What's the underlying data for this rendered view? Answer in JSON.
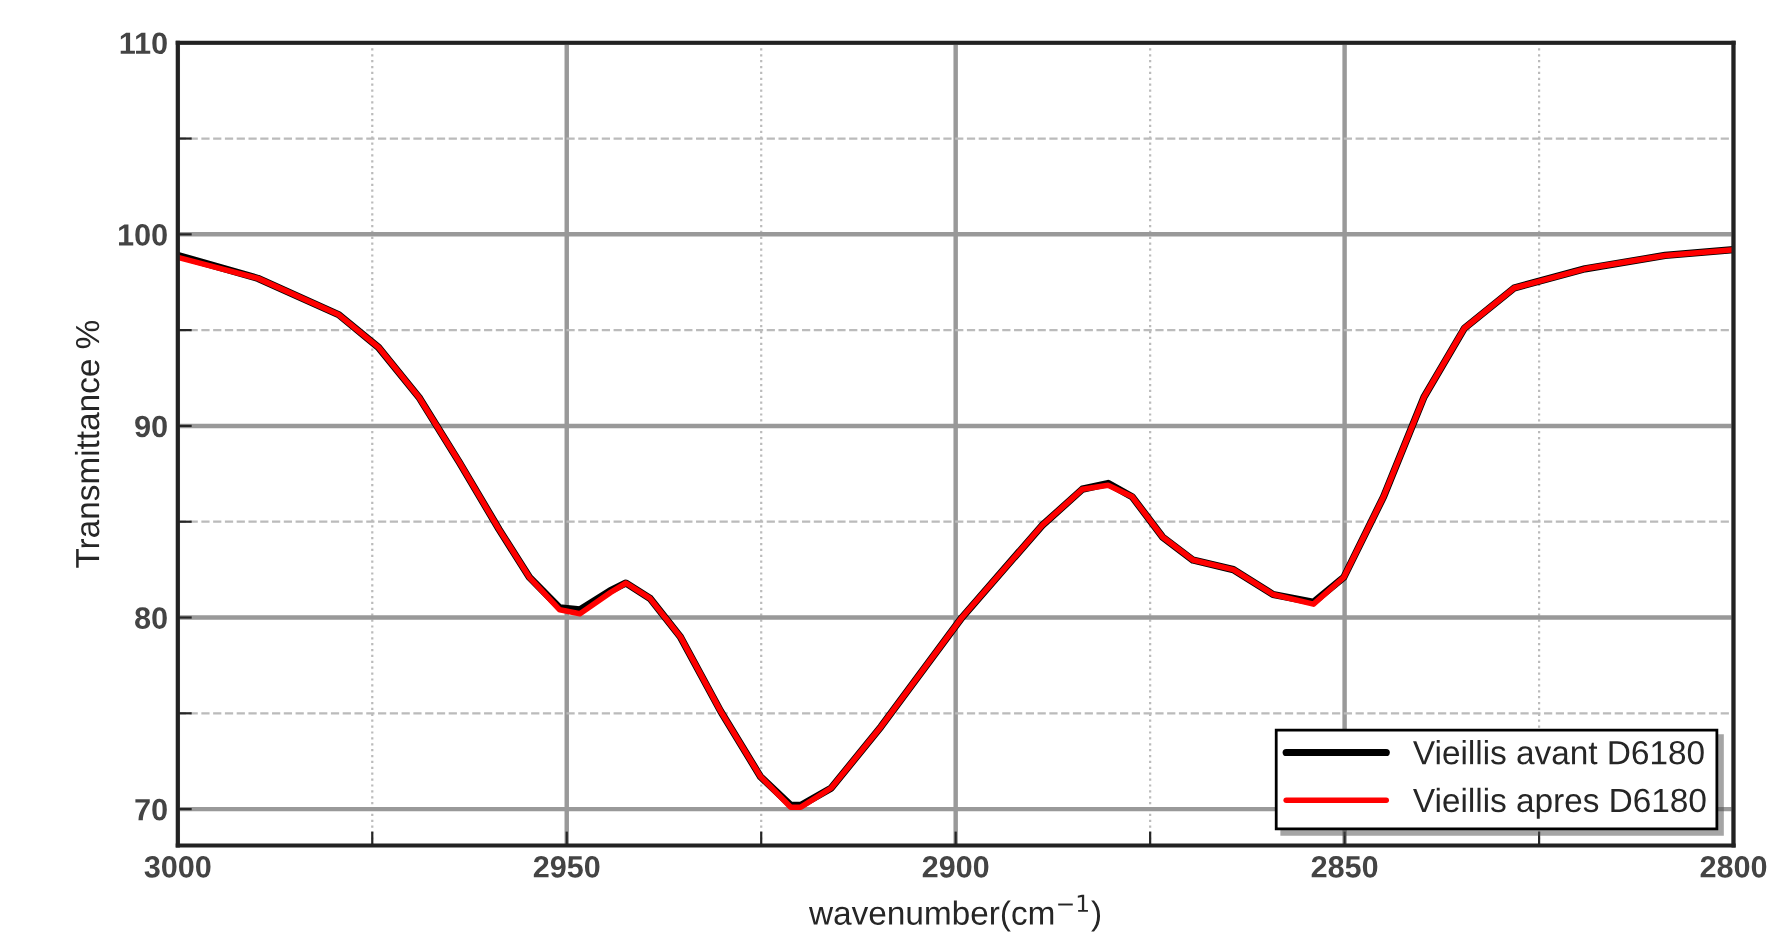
{
  "chart_data": {
    "type": "line",
    "xlabel": "wavenumber(cm$^{−1}$)",
    "ylabel": "Transmittance %",
    "xlim": [
      3000,
      2800
    ],
    "ylim": [
      68.1,
      110
    ],
    "xticks": [
      3000,
      {
        "value": 2975,
        "label": null
      },
      2950,
      {
        "value": 2925,
        "label": null
      },
      2900,
      {
        "value": 2875,
        "label": null
      },
      2850,
      {
        "value": 2825,
        "label": null
      },
      2800
    ],
    "yticks": [
      70,
      {
        "value": 75,
        "label": null
      },
      80,
      {
        "value": 85,
        "label": null
      },
      90,
      {
        "value": 95,
        "label": null
      },
      100,
      {
        "value": 105,
        "label": null
      },
      110
    ],
    "grid": true,
    "legend": "bottom right",
    "line_style": "solid",
    "marker": "none",
    "x": [
      3000,
      2989.7,
      2979.3,
      2974.2,
      2969,
      2963.8,
      2958.7,
      2954.8,
      2950.9,
      2948.3,
      2944.4,
      2942.4,
      2939.3,
      2935.4,
      2930.2,
      2925.1,
      2921.2,
      2919.9,
      2916,
      2909.6,
      2899.2,
      2888.9,
      2883.7,
      2880.4,
      2877.3,
      2873.4,
      2869.5,
      2864.3,
      2859.2,
      2854,
      2850.1,
      2845,
      2839.8,
      2834.6,
      2828.2,
      2819.1,
      2808.8,
      2800
    ],
    "series": [
      {
        "name": "Vieillis avant D6180",
        "color": "#000000",
        "values": [
          98.9,
          97.7,
          95.8,
          94.1,
          91.5,
          88.1,
          84.6,
          82.1,
          80.5,
          80.4,
          81.4,
          81.8,
          81.0,
          79.0,
          75.1,
          71.7,
          70.2,
          70.2,
          71.1,
          74.3,
          80.0,
          84.8,
          86.7,
          87.0,
          86.3,
          84.2,
          83.0,
          82.5,
          81.2,
          80.8,
          82.1,
          86.3,
          91.5,
          95.1,
          97.2,
          98.2,
          98.9,
          99.2
        ]
      },
      {
        "name": "Vieillis apres D6180",
        "color": "#ff0000",
        "values": [
          98.8,
          97.7,
          95.8,
          94.1,
          91.5,
          88.1,
          84.6,
          82.1,
          80.4,
          80.2,
          81.3,
          81.8,
          81.0,
          79.0,
          75.1,
          71.7,
          70.1,
          70.1,
          71.1,
          74.3,
          80.0,
          84.8,
          86.7,
          86.9,
          86.3,
          84.2,
          83.0,
          82.5,
          81.2,
          80.7,
          82.1,
          86.3,
          91.5,
          95.1,
          97.2,
          98.2,
          98.9,
          99.2
        ]
      }
    ]
  }
}
